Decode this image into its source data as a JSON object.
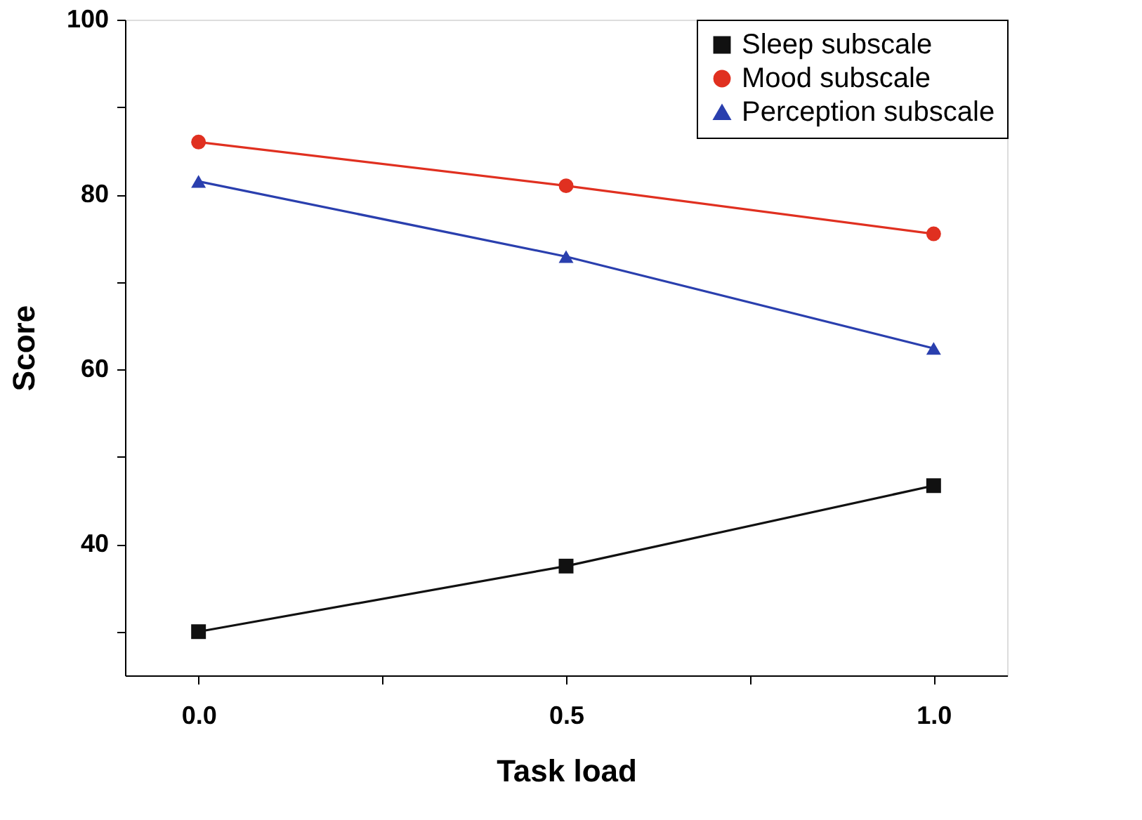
{
  "chart_data": {
    "type": "line",
    "xlabel": "Task load",
    "ylabel": "Score",
    "x": [
      0.0,
      0.5,
      1.0
    ],
    "series": [
      {
        "name": "Sleep subscale",
        "color": "#111111",
        "marker": "square",
        "values": [
          30,
          37.5,
          46.7
        ]
      },
      {
        "name": "Mood subscale",
        "color": "#e03020",
        "marker": "circle",
        "values": [
          86.0,
          81.0,
          75.5
        ]
      },
      {
        "name": "Perception subscale",
        "color": "#2a3fae",
        "marker": "triangle",
        "values": [
          81.5,
          72.9,
          62.4
        ]
      }
    ],
    "xlim": [
      -0.1,
      1.1
    ],
    "xticks": [
      {
        "value": 0,
        "label": "0.0"
      },
      {
        "value": 0.25,
        "label": null
      },
      0.5,
      {
        "value": 0.75,
        "label": null
      },
      {
        "value": 1,
        "label": "1.0"
      }
    ],
    "ylim": [
      25,
      100
    ],
    "yticks": [
      {
        "value": 30,
        "label": null
      },
      40,
      {
        "value": 50,
        "label": null
      },
      60,
      {
        "value": 70,
        "label": null
      },
      80,
      {
        "value": 90,
        "label": null
      },
      100
    ],
    "grid": false,
    "legend": "top right",
    "line_style": "solid"
  }
}
